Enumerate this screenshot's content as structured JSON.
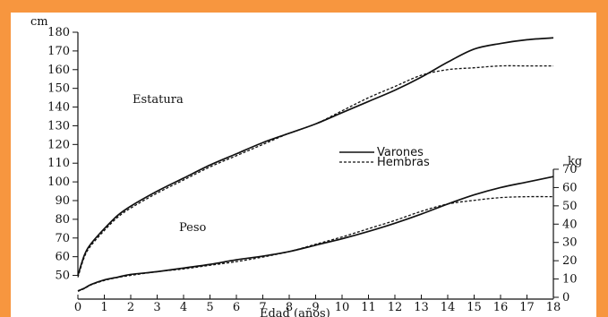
{
  "colors": {
    "border": "#f7963f",
    "background": "#ffffff",
    "ink": "#111111"
  },
  "chart_data": {
    "type": "line",
    "xlabel": "Edad (años)",
    "y_left_unit": "cm",
    "y_right_unit": "kg",
    "x_range": [
      0,
      18
    ],
    "x_ticks": [
      "0",
      "1",
      "2",
      "3",
      "4",
      "5",
      "6",
      "7",
      "8",
      "9",
      "10",
      "11",
      "12",
      "13",
      "14",
      "15",
      "16",
      "17",
      "18"
    ],
    "y_left_range": [
      45,
      180
    ],
    "y_left_ticks": [
      "50",
      "60",
      "70",
      "80",
      "90",
      "100",
      "110",
      "120",
      "130",
      "140",
      "150",
      "160",
      "170",
      "180"
    ],
    "y_right_range": [
      0,
      70
    ],
    "y_right_ticks": [
      "0",
      "10",
      "20",
      "30",
      "40",
      "50",
      "60",
      "70"
    ],
    "annotations": {
      "height_label": "Estatura",
      "weight_label": "Peso"
    },
    "legend": {
      "position": "center-right",
      "entries": [
        "Varones",
        "Hembras"
      ]
    },
    "series": [
      {
        "name": "Varones",
        "group": "Estatura",
        "axis": "left",
        "style": "solid",
        "x": [
          0,
          0.25,
          0.5,
          1,
          1.5,
          2,
          3,
          4,
          5,
          6,
          7,
          8,
          9,
          10,
          11,
          12,
          13,
          14,
          15,
          16,
          17,
          18
        ],
        "y": [
          50,
          61,
          67,
          75,
          82,
          87,
          95,
          102,
          109,
          115,
          121,
          126,
          131,
          137,
          143,
          149,
          156,
          164,
          171,
          174,
          176,
          177
        ]
      },
      {
        "name": "Hembras",
        "group": "Estatura",
        "axis": "left",
        "style": "dashed",
        "x": [
          0,
          0.25,
          0.5,
          1,
          1.5,
          2,
          3,
          4,
          5,
          6,
          7,
          8,
          9,
          10,
          11,
          12,
          13,
          14,
          15,
          16,
          17,
          18
        ],
        "y": [
          49,
          60,
          66,
          74,
          81,
          86,
          94,
          101,
          108,
          114,
          120,
          126,
          131,
          138,
          145,
          151,
          157,
          160,
          161,
          162,
          162,
          162
        ]
      },
      {
        "name": "Varones",
        "group": "Peso",
        "axis": "right",
        "style": "solid",
        "x": [
          0,
          0.25,
          0.5,
          1,
          1.5,
          2,
          3,
          4,
          5,
          6,
          7,
          8,
          9,
          10,
          11,
          12,
          13,
          14,
          15,
          16,
          17,
          18
        ],
        "y": [
          3.5,
          5,
          7,
          9.5,
          11,
          12.5,
          14,
          16,
          18,
          20.5,
          22.5,
          25,
          28.5,
          32,
          36,
          40.5,
          45.5,
          51,
          56,
          60,
          63,
          66
        ]
      },
      {
        "name": "Hembras",
        "group": "Peso",
        "axis": "right",
        "style": "dashed",
        "x": [
          0,
          0.25,
          0.5,
          1,
          1.5,
          2,
          3,
          4,
          5,
          6,
          7,
          8,
          9,
          10,
          11,
          12,
          13,
          14,
          15,
          16,
          17,
          18
        ],
        "y": [
          3.3,
          4.8,
          6.8,
          9.2,
          10.8,
          12,
          14,
          15.5,
          17.5,
          19.5,
          22,
          25,
          29,
          33,
          37.5,
          42,
          47,
          51,
          53,
          54.5,
          55,
          55
        ]
      }
    ]
  }
}
